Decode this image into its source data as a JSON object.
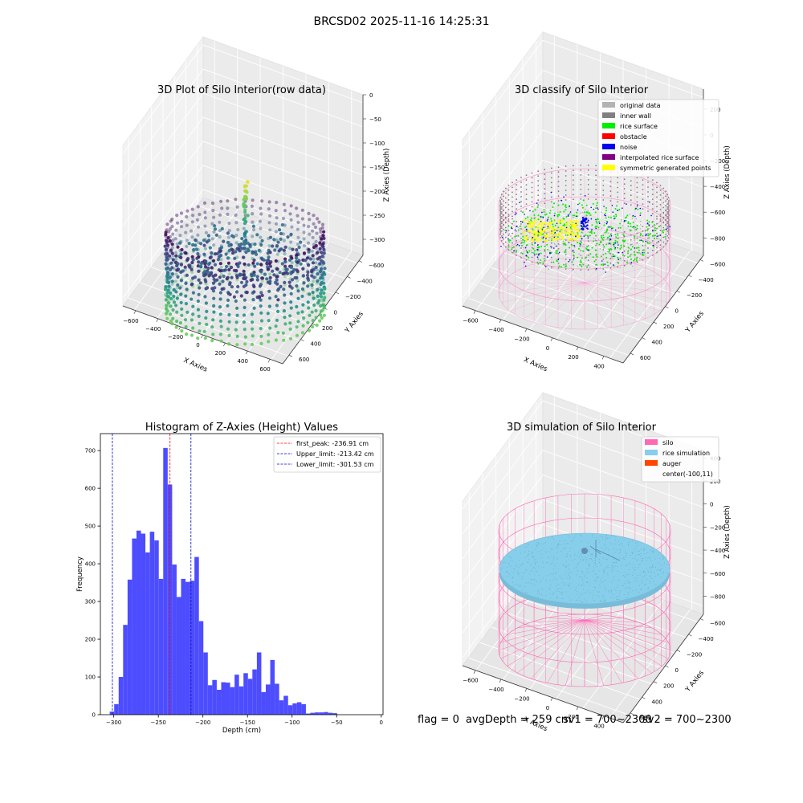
{
  "page": {
    "suptitle": "BRCSD02 2025-11-16 14:25:31",
    "status": {
      "flag": "flag = 0",
      "avg_depth": "avgDepth = 259 cm",
      "sv1": "sv1 = 700~2300",
      "sv2": "sv2 = 700~2300"
    }
  },
  "chart_data": [
    {
      "id": "raw3d",
      "type": "scatter",
      "title": "3D Plot of Silo Interior(row data)",
      "xlabel": "X Axies",
      "ylabel": "Y Axies",
      "zlabel": "Z Axies (Depth)",
      "x_ticks": [
        "−600",
        "−400",
        "−200",
        "0",
        "200",
        "400",
        "600"
      ],
      "y_ticks": [
        "−600",
        "−400",
        "−200",
        "0",
        "200",
        "400",
        "600"
      ],
      "z_ticks": [
        "0",
        "−50",
        "−100",
        "−150",
        "−200",
        "−250",
        "−300"
      ],
      "xlim": [
        -700,
        600
      ],
      "ylim": [
        -650,
        650
      ],
      "zlim": [
        -330,
        0
      ],
      "colormap": [
        "#440154",
        "#3b528b",
        "#21918c",
        "#5ec962",
        "#fde725"
      ],
      "grid": true
    },
    {
      "id": "classify3d",
      "type": "scatter",
      "title": "3D classify of Silo Interior",
      "xlabel": "X Axies",
      "ylabel": "Y Axies",
      "zlabel": "Z Axies (Depth)",
      "x_ticks": [
        "−600",
        "−400",
        "−200",
        "0",
        "200",
        "400"
      ],
      "y_ticks": [
        "−600",
        "−400",
        "−200",
        "0",
        "200",
        "400",
        "600"
      ],
      "z_ticks": [
        "200",
        "0",
        "−200",
        "−400",
        "−600",
        "−800"
      ],
      "zlim": [
        -900,
        350
      ],
      "legend_position": "top-right",
      "legend": [
        {
          "label": "original data",
          "color": "#b3b3b3"
        },
        {
          "label": "inner wall",
          "color": "#808080"
        },
        {
          "label": "rice surface",
          "color": "#00ee00"
        },
        {
          "label": "obstacle",
          "color": "#ff0000"
        },
        {
          "label": "noise",
          "color": "#0000ee"
        },
        {
          "label": "interpolated rice surface",
          "color": "#800080"
        },
        {
          "label": "symmetric generated points",
          "color": "#ffff00"
        }
      ],
      "silo_color": "#ff8ccc",
      "grid": true
    },
    {
      "id": "histogram",
      "type": "bar",
      "title": "Histogram of Z-Axies (Height) Values",
      "xlabel": "Depth (cm)",
      "ylabel": "Frequency",
      "xlim": [
        -315,
        2
      ],
      "ylim": [
        0,
        745
      ],
      "x_ticks": [
        -300,
        -250,
        -200,
        -150,
        -100,
        -50,
        0
      ],
      "y_ticks": [
        0,
        100,
        200,
        300,
        400,
        500,
        600,
        700
      ],
      "bin_start": -304.5,
      "bin_width": 5,
      "bar_color": "#4d4dff",
      "values": [
        8,
        28,
        100,
        238,
        358,
        467,
        488,
        480,
        430,
        485,
        462,
        360,
        707,
        610,
        398,
        312,
        360,
        352,
        355,
        418,
        248,
        165,
        78,
        92,
        66,
        86,
        85,
        73,
        106,
        75,
        110,
        95,
        120,
        165,
        60,
        80,
        145,
        82,
        38,
        50,
        25,
        30,
        33,
        28,
        3,
        5,
        6,
        6,
        7,
        5,
        4
      ],
      "vlines": [
        {
          "label": "first_peak: -236.91 cm",
          "x": -236.91,
          "color": "#ff0000"
        },
        {
          "label": "Upper_limit: -213.42 cm",
          "x": -213.42,
          "color": "#0000cc"
        },
        {
          "label": "Lower_limit: -301.53 cm",
          "x": -301.53,
          "color": "#0000cc"
        }
      ],
      "legend_position": "top-right"
    },
    {
      "id": "simulation3d",
      "type": "scatter",
      "title": "3D simulation of Silo Interior",
      "xlabel": "X Axies",
      "ylabel": "Y Axies",
      "zlabel": "Z Axies (Depth)",
      "x_ticks": [
        "−600",
        "−400",
        "−200",
        "0",
        "200",
        "400"
      ],
      "y_ticks": [
        "−600",
        "−400",
        "−200",
        "0",
        "200",
        "400",
        "600"
      ],
      "z_ticks": [
        "400",
        "200",
        "0",
        "−200",
        "−400",
        "−600",
        "−800"
      ],
      "zlim": [
        -900,
        450
      ],
      "legend_position": "top-right",
      "legend": [
        {
          "label": "silo",
          "color": "#ff69b4"
        },
        {
          "label": "rice simulation",
          "color": "#87ceeb"
        },
        {
          "label": "auger",
          "color": "#ff4500"
        },
        {
          "label": "center(-100,11)",
          "color": ""
        }
      ],
      "grid": true
    }
  ]
}
